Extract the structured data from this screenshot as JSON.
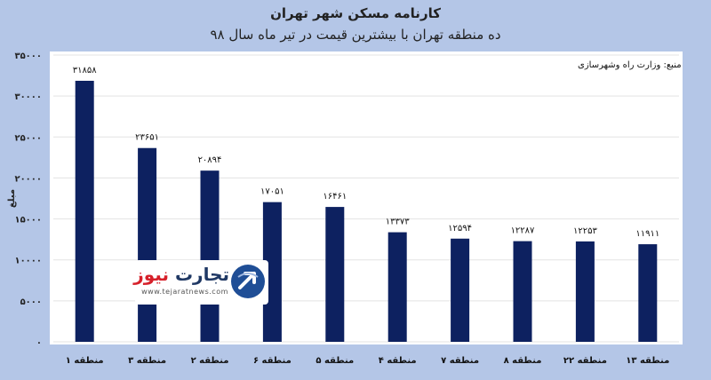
{
  "chart_data": {
    "type": "bar",
    "title": "کارنامه مسکن شهر تهران",
    "subtitle": "ده منطقه تهران با بیشترین قیمت در تیر ماه سال ۹۸",
    "ylabel": "مبلغ",
    "xlabel": "",
    "ylim": [
      0,
      35000
    ],
    "yticks": [
      0,
      5000,
      10000,
      15000,
      20000,
      25000,
      30000,
      35000
    ],
    "ytick_labels": [
      "۰",
      "۵۰۰۰",
      "۱۰۰۰۰",
      "۱۵۰۰۰",
      "۲۰۰۰۰",
      "۲۵۰۰۰",
      "۳۰۰۰۰",
      "۳۵۰۰۰"
    ],
    "grid": true,
    "categories": [
      "منطقه ۱",
      "منطقه ۳",
      "منطقه ۲",
      "منطقه ۶",
      "منطقه ۵",
      "منطقه ۴",
      "منطقه ۷",
      "منطقه ۸",
      "منطقه ۲۲",
      "منطقه ۱۳"
    ],
    "values": [
      31858,
      23651,
      20894,
      17051,
      16461,
      13373,
      12594,
      12287,
      12253,
      11911
    ],
    "value_labels": [
      "۳۱۸۵۸",
      "۲۳۶۵۱",
      "۲۰۸۹۴",
      "۱۷۰۵۱",
      "۱۶۴۶۱",
      "۱۳۳۷۳",
      "۱۲۵۹۴",
      "۱۲۲۸۷",
      "۱۲۲۵۳",
      "۱۱۹۱۱"
    ],
    "bar_color": "#0d2160",
    "grid_color": "#e3e3e3",
    "background_color": "#b4c6e7"
  },
  "source_note": "منبع: وزارت راه وشهرسازی",
  "watermark": {
    "brand_main": "تجارت",
    "brand_accent": "نیوز",
    "url": "www.tejaratnews.com",
    "icon": "globe-arrow-icon"
  }
}
